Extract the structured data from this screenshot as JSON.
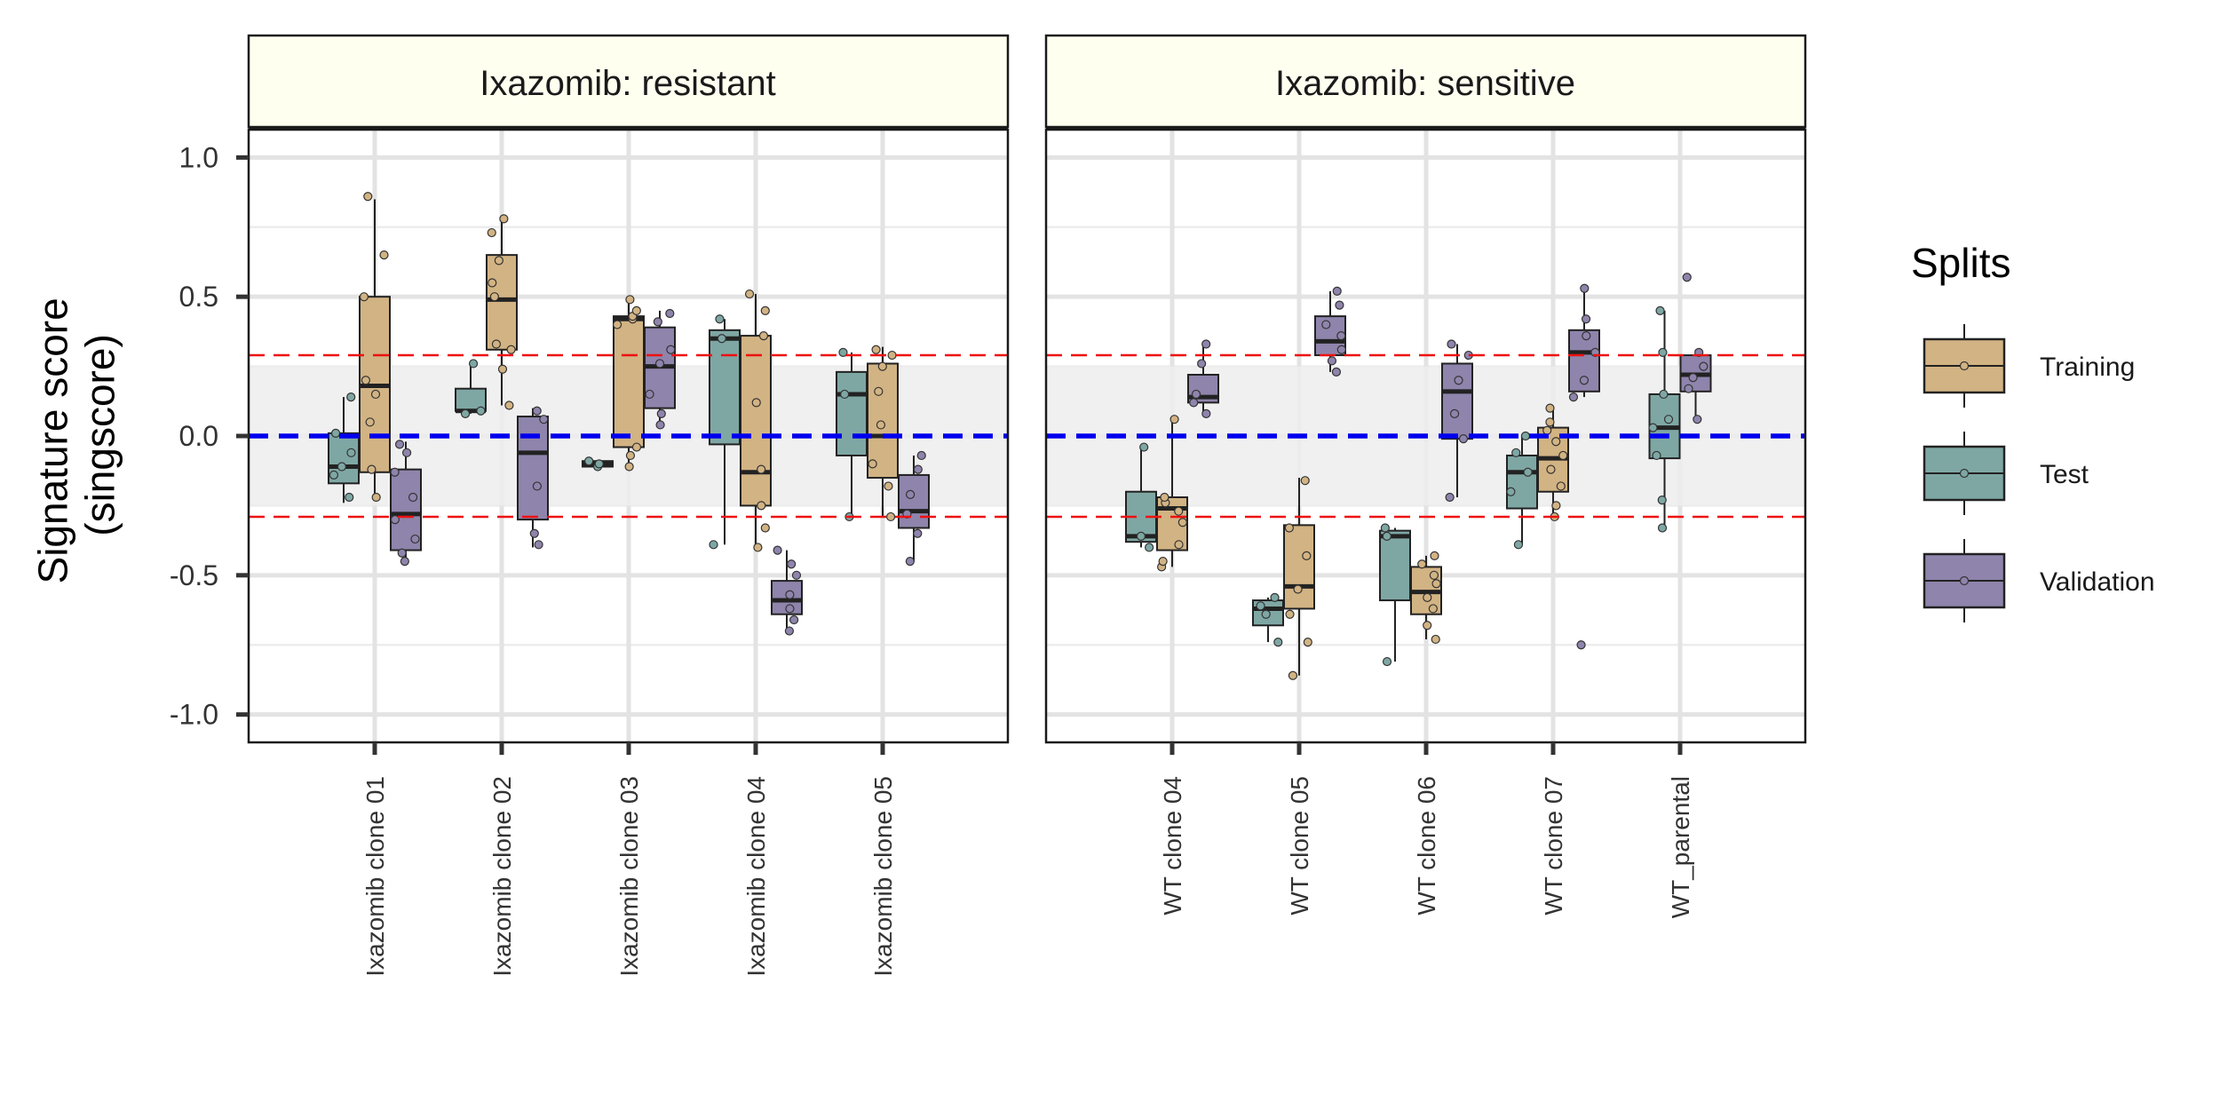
{
  "chart_data": {
    "type": "box",
    "ylabel_line1": "Signature score",
    "ylabel_line2": "(singscore)",
    "ylim": [
      -1.1,
      1.1
    ],
    "yticks": [
      "1.0",
      "0.5",
      "0.0",
      "-0.5",
      "-1.0"
    ],
    "ytick_values": [
      1.0,
      0.5,
      0.0,
      -0.5,
      -1.0
    ],
    "reference_lines": {
      "center": 0.0,
      "upper": 0.29,
      "lower": -0.29,
      "band": [
        -0.25,
        0.25
      ]
    },
    "colors": {
      "Training": "#D2B383",
      "Test": "#7EA7A4",
      "Validation": "#8F84AC",
      "center_line": "#0000EE",
      "threshold_line": "#EE1111",
      "band": "#EDEDED",
      "strip_fill": "#FFFFF0"
    },
    "legend": {
      "title": "Splits",
      "entries": [
        "Training",
        "Test",
        "Validation"
      ],
      "position": "right"
    },
    "panels": [
      {
        "title": "Ixazomib: resistant",
        "categories": [
          "Ixazomib clone 01",
          "Ixazomib clone 02",
          "Ixazomib clone 03",
          "Ixazomib clone 04",
          "Ixazomib clone 05"
        ],
        "groups": [
          {
            "category": 0,
            "split": "Test",
            "offset": -1,
            "box": {
              "min": -0.24,
              "q1": -0.17,
              "median": -0.11,
              "q3": 0.01,
              "max": 0.14
            },
            "points": [
              -0.22,
              -0.14,
              -0.11,
              -0.06,
              0.01,
              0.14
            ]
          },
          {
            "category": 0,
            "split": "Training",
            "offset": 0,
            "box": {
              "min": -0.22,
              "q1": -0.13,
              "median": 0.18,
              "q3": 0.5,
              "max": 0.85
            },
            "points": [
              -0.22,
              -0.12,
              0.05,
              0.15,
              0.2,
              0.5,
              0.65,
              0.86
            ]
          },
          {
            "category": 0,
            "split": "Validation",
            "offset": 1,
            "box": {
              "min": -0.45,
              "q1": -0.41,
              "median": -0.28,
              "q3": -0.12,
              "max": -0.02
            },
            "points": [
              -0.45,
              -0.42,
              -0.37,
              -0.3,
              -0.22,
              -0.13,
              -0.06,
              -0.03
            ]
          },
          {
            "category": 1,
            "split": "Test",
            "offset": -1,
            "box": {
              "min": 0.08,
              "q1": 0.09,
              "median": 0.09,
              "q3": 0.17,
              "max": 0.26
            },
            "points": [
              0.08,
              0.09,
              0.26
            ]
          },
          {
            "category": 1,
            "split": "Training",
            "offset": 0,
            "box": {
              "min": 0.11,
              "q1": 0.31,
              "median": 0.49,
              "q3": 0.65,
              "max": 0.78
            },
            "points": [
              0.11,
              0.24,
              0.31,
              0.33,
              0.5,
              0.55,
              0.63,
              0.73,
              0.78
            ]
          },
          {
            "category": 1,
            "split": "Validation",
            "offset": 1,
            "box": {
              "min": -0.4,
              "q1": -0.3,
              "median": -0.06,
              "q3": 0.07,
              "max": 0.1
            },
            "points": [
              -0.39,
              -0.35,
              -0.18,
              0.06,
              0.09
            ]
          },
          {
            "category": 2,
            "split": "Test",
            "offset": -1,
            "box": {
              "min": -0.11,
              "q1": -0.11,
              "median": -0.1,
              "q3": -0.09,
              "max": -0.09
            },
            "points": [
              -0.11,
              -0.1,
              -0.09
            ]
          },
          {
            "category": 2,
            "split": "Training",
            "offset": 0,
            "box": {
              "min": -0.11,
              "q1": -0.04,
              "median": 0.42,
              "q3": 0.43,
              "max": 0.49
            },
            "points": [
              -0.11,
              -0.07,
              -0.04,
              0.4,
              0.42,
              0.43,
              0.45,
              0.49
            ]
          },
          {
            "category": 2,
            "split": "Validation",
            "offset": 1,
            "box": {
              "min": 0.04,
              "q1": 0.1,
              "median": 0.25,
              "q3": 0.39,
              "max": 0.45
            },
            "points": [
              0.04,
              0.08,
              0.15,
              0.26,
              0.31,
              0.41,
              0.44
            ]
          },
          {
            "category": 3,
            "split": "Test",
            "offset": -1,
            "box": {
              "min": -0.39,
              "q1": -0.03,
              "median": 0.35,
              "q3": 0.38,
              "max": 0.42
            },
            "points": [
              -0.39,
              0.35,
              0.42
            ]
          },
          {
            "category": 3,
            "split": "Training",
            "offset": 0,
            "box": {
              "min": -0.4,
              "q1": -0.25,
              "median": -0.13,
              "q3": 0.36,
              "max": 0.51
            },
            "points": [
              -0.4,
              -0.33,
              -0.25,
              -0.12,
              0.12,
              0.36,
              0.45,
              0.51
            ]
          },
          {
            "category": 3,
            "split": "Validation",
            "offset": 1,
            "box": {
              "min": -0.7,
              "q1": -0.64,
              "median": -0.59,
              "q3": -0.52,
              "max": -0.41
            },
            "points": [
              -0.7,
              -0.66,
              -0.62,
              -0.57,
              -0.5,
              -0.46,
              -0.41
            ]
          },
          {
            "category": 4,
            "split": "Test",
            "offset": -1,
            "box": {
              "min": -0.29,
              "q1": -0.07,
              "median": 0.15,
              "q3": 0.23,
              "max": 0.3
            },
            "points": [
              -0.29,
              0.15,
              0.3
            ]
          },
          {
            "category": 4,
            "split": "Training",
            "offset": 0,
            "box": {
              "min": -0.29,
              "q1": -0.15,
              "median": 0.0,
              "q3": 0.26,
              "max": 0.32
            },
            "points": [
              -0.29,
              -0.18,
              -0.1,
              0.04,
              0.16,
              0.25,
              0.29,
              0.31
            ]
          },
          {
            "category": 4,
            "split": "Validation",
            "offset": 1,
            "box": {
              "min": -0.45,
              "q1": -0.33,
              "median": -0.27,
              "q3": -0.14,
              "max": -0.07
            },
            "points": [
              -0.45,
              -0.35,
              -0.28,
              -0.21,
              -0.12,
              -0.07
            ]
          }
        ]
      },
      {
        "title": "Ixazomib: sensitive",
        "categories": [
          "WT clone 04",
          "WT clone 05",
          "WT clone 06",
          "WT clone 07",
          "WT_parental"
        ],
        "groups": [
          {
            "category": 0,
            "split": "Test",
            "offset": -1,
            "box": {
              "min": -0.4,
              "q1": -0.38,
              "median": -0.36,
              "q3": -0.2,
              "max": -0.04
            },
            "points": [
              -0.4,
              -0.36,
              -0.04
            ]
          },
          {
            "category": 0,
            "split": "Training",
            "offset": 0,
            "box": {
              "min": -0.47,
              "q1": -0.41,
              "median": -0.26,
              "q3": -0.22,
              "max": 0.06
            },
            "points": [
              -0.47,
              -0.45,
              -0.39,
              -0.31,
              -0.27,
              -0.24,
              -0.22,
              0.06
            ]
          },
          {
            "category": 0,
            "split": "Validation",
            "offset": 1,
            "box": {
              "min": 0.08,
              "q1": 0.12,
              "median": 0.14,
              "q3": 0.22,
              "max": 0.33
            },
            "points": [
              0.08,
              0.12,
              0.15,
              0.26,
              0.33
            ]
          },
          {
            "category": 1,
            "split": "Test",
            "offset": -1,
            "box": {
              "min": -0.74,
              "q1": -0.68,
              "median": -0.62,
              "q3": -0.59,
              "max": -0.58
            },
            "points": [
              -0.74,
              -0.64,
              -0.61,
              -0.58
            ]
          },
          {
            "category": 1,
            "split": "Training",
            "offset": 0,
            "box": {
              "min": -0.86,
              "q1": -0.62,
              "median": -0.54,
              "q3": -0.32,
              "max": -0.15
            },
            "points": [
              -0.86,
              -0.74,
              -0.64,
              -0.55,
              -0.43,
              -0.33,
              -0.16
            ]
          },
          {
            "category": 1,
            "split": "Validation",
            "offset": 1,
            "box": {
              "min": 0.23,
              "q1": 0.29,
              "median": 0.34,
              "q3": 0.43,
              "max": 0.52
            },
            "points": [
              0.23,
              0.27,
              0.31,
              0.36,
              0.4,
              0.47,
              0.52
            ]
          },
          {
            "category": 2,
            "split": "Test",
            "offset": -1,
            "box": {
              "min": -0.81,
              "q1": -0.59,
              "median": -0.36,
              "q3": -0.34,
              "max": -0.33
            },
            "points": [
              -0.81,
              -0.36,
              -0.33
            ]
          },
          {
            "category": 2,
            "split": "Training",
            "offset": 0,
            "box": {
              "min": -0.73,
              "q1": -0.64,
              "median": -0.56,
              "q3": -0.47,
              "max": -0.43
            },
            "points": [
              -0.73,
              -0.68,
              -0.62,
              -0.58,
              -0.53,
              -0.5,
              -0.46,
              -0.43
            ]
          },
          {
            "category": 2,
            "split": "Validation",
            "offset": 1,
            "box": {
              "min": -0.22,
              "q1": -0.01,
              "median": 0.16,
              "q3": 0.26,
              "max": 0.33
            },
            "points": [
              -0.22,
              -0.01,
              0.08,
              0.2,
              0.29,
              0.33
            ]
          },
          {
            "category": 3,
            "split": "Test",
            "offset": -1,
            "box": {
              "min": -0.39,
              "q1": -0.26,
              "median": -0.13,
              "q3": -0.07,
              "max": 0.0
            },
            "points": [
              -0.39,
              -0.2,
              -0.13,
              -0.06,
              0.0
            ]
          },
          {
            "category": 3,
            "split": "Training",
            "offset": 0,
            "box": {
              "min": -0.29,
              "q1": -0.2,
              "median": -0.08,
              "q3": 0.03,
              "max": 0.1
            },
            "points": [
              -0.29,
              -0.25,
              -0.18,
              -0.12,
              -0.07,
              -0.02,
              0.02,
              0.05,
              0.1
            ]
          },
          {
            "category": 3,
            "split": "Validation",
            "offset": 1,
            "box": {
              "min": 0.14,
              "q1": 0.16,
              "median": 0.3,
              "q3": 0.38,
              "max": 0.53
            },
            "points": [
              -0.75,
              0.14,
              0.2,
              0.3,
              0.36,
              0.42,
              0.53
            ]
          },
          {
            "category": 4,
            "split": "Test",
            "offset": -0.5,
            "box": {
              "min": -0.32,
              "q1": -0.08,
              "median": 0.03,
              "q3": 0.15,
              "max": 0.45
            },
            "points": [
              -0.33,
              -0.23,
              -0.07,
              0.03,
              0.06,
              0.15,
              0.3,
              0.45
            ]
          },
          {
            "category": 4,
            "split": "Validation",
            "offset": 0.5,
            "box": {
              "min": 0.06,
              "q1": 0.16,
              "median": 0.22,
              "q3": 0.29,
              "max": 0.31
            },
            "points": [
              0.06,
              0.17,
              0.21,
              0.25,
              0.3,
              0.57
            ]
          }
        ]
      }
    ]
  }
}
